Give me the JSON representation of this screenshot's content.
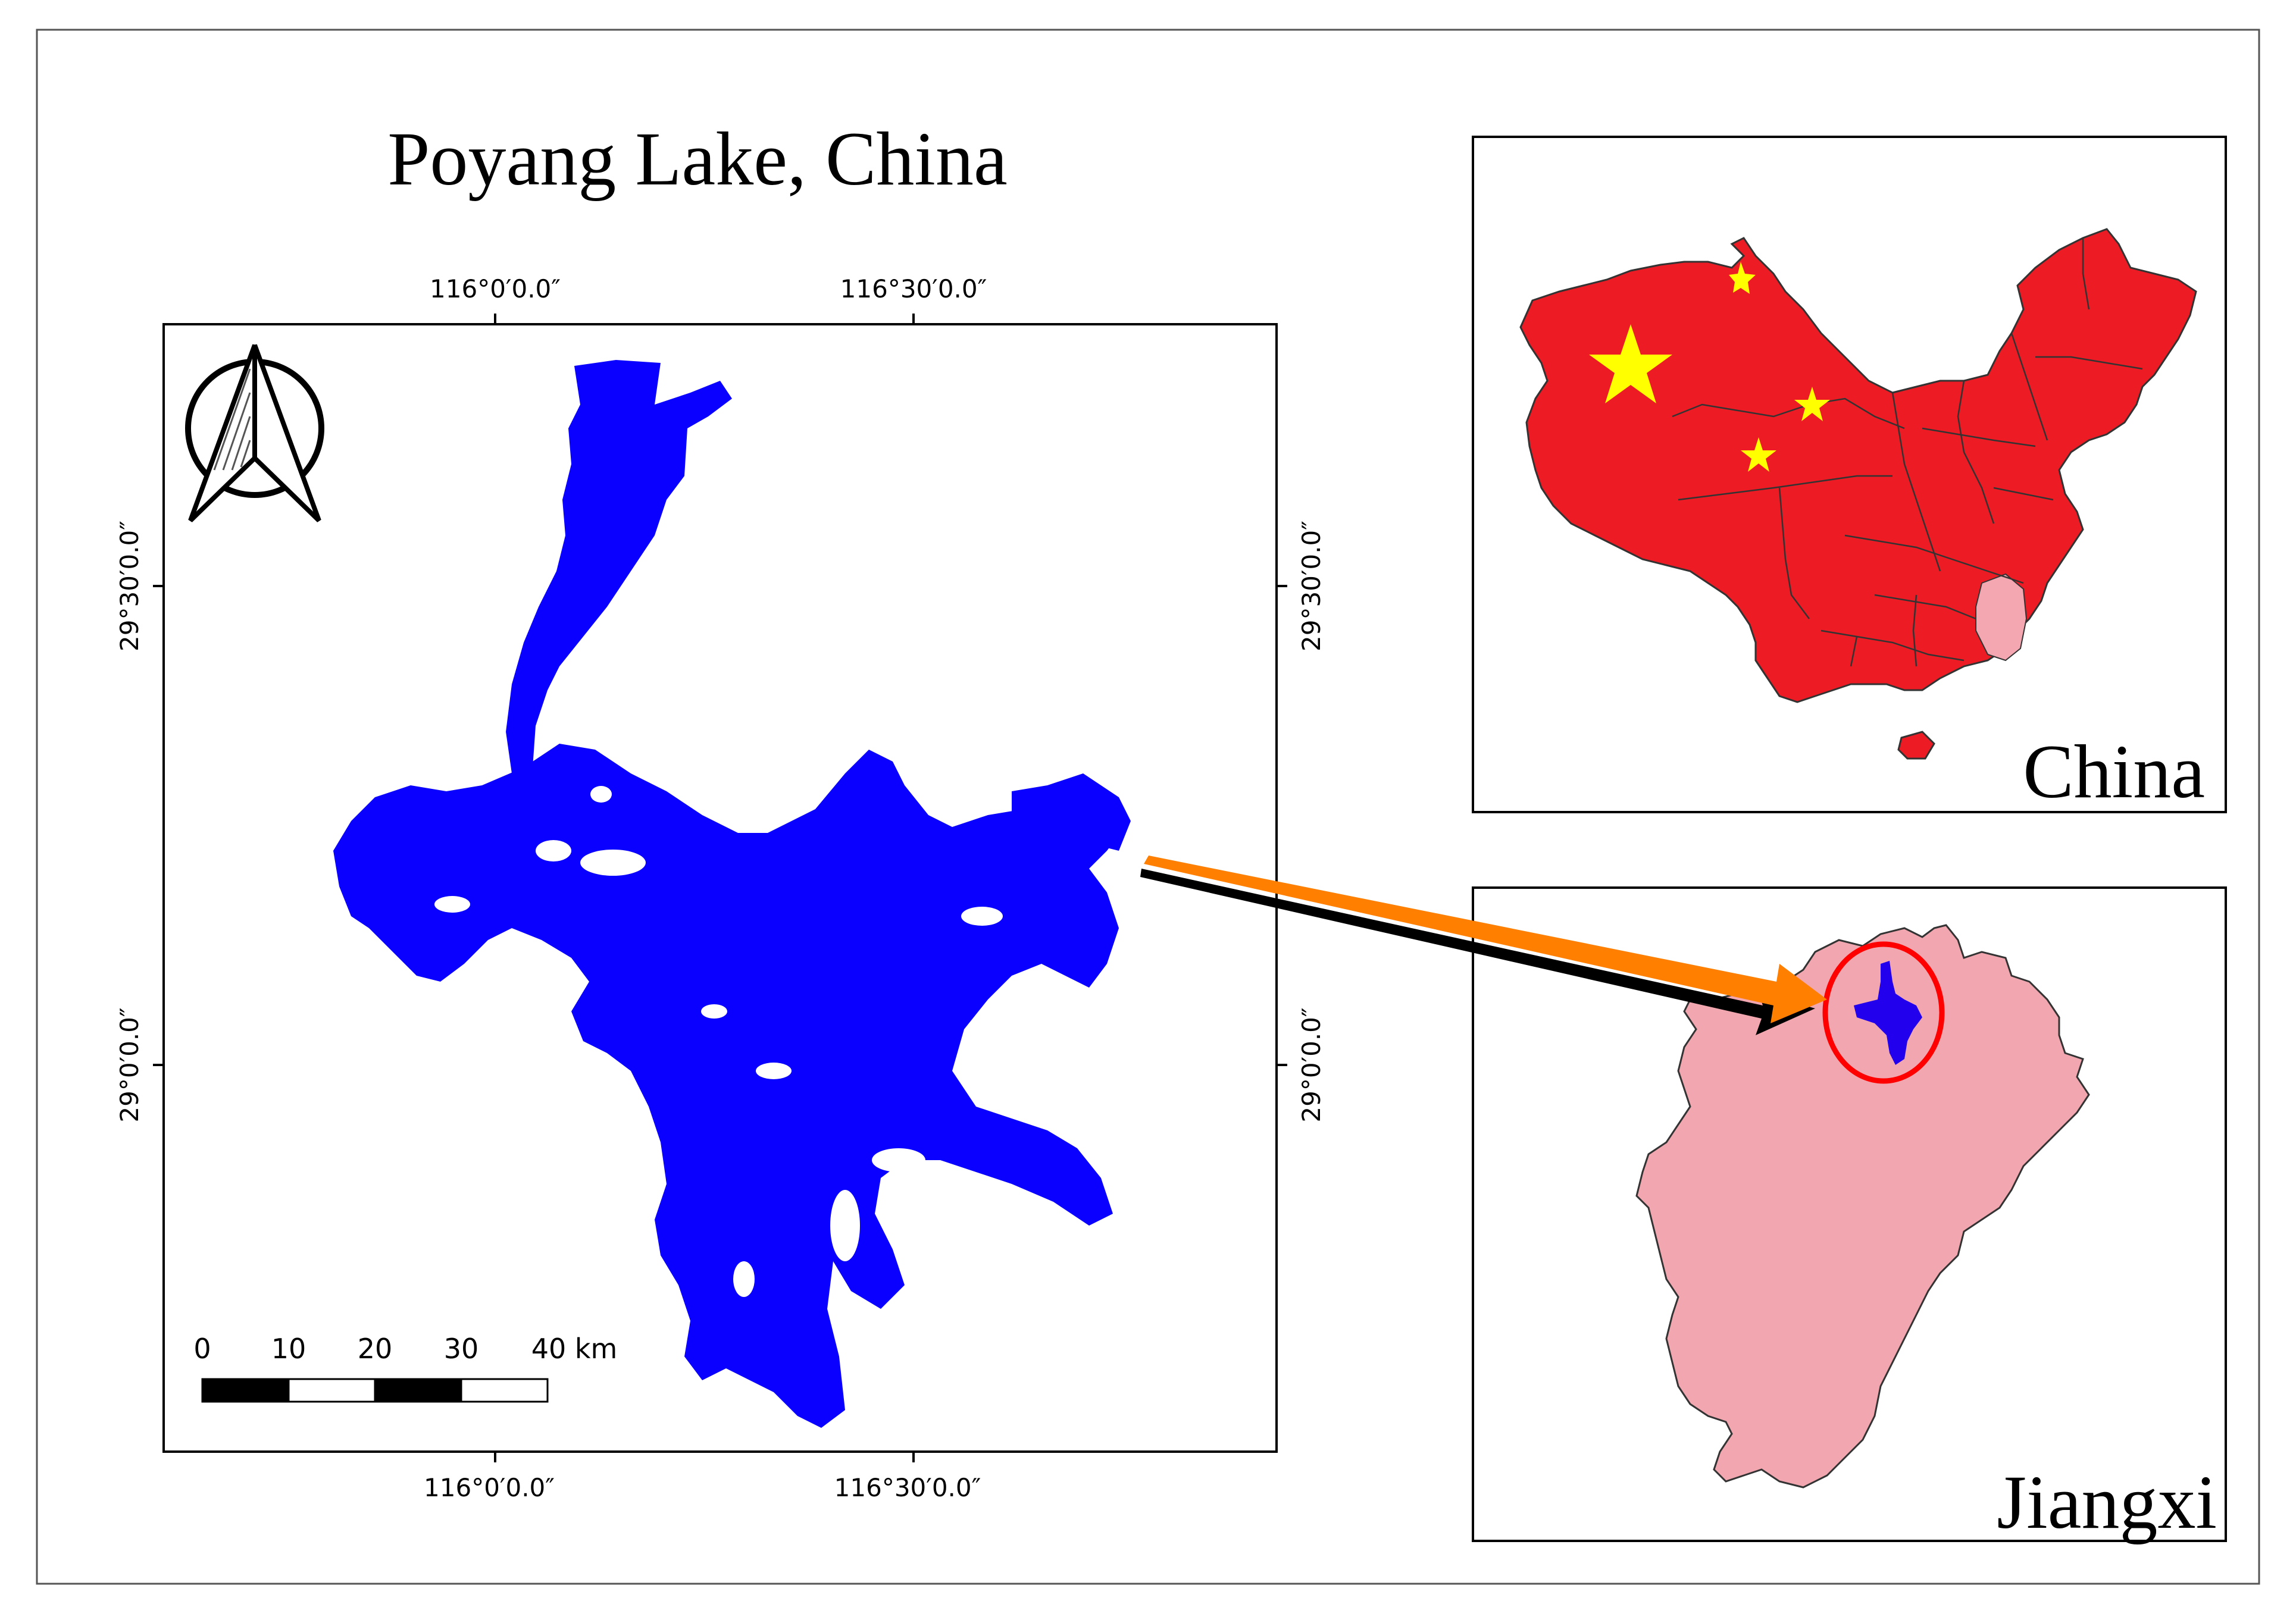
{
  "title": "Poyang Lake, China",
  "main_map": {
    "lon_top": [
      "116°0′0.0″",
      "116°30′0.0″"
    ],
    "lon_bottom": [
      "116°0′0.0″",
      "116°30′0.0″"
    ],
    "lat_left": [
      "29°30′0.0″",
      "29°0′0.0″"
    ],
    "lat_right": [
      "29°30′0.0″",
      "29°0′0.0″"
    ],
    "water_color": "#0a00ff"
  },
  "north_arrow": {
    "icon": "north-arrow-icon"
  },
  "scale_bar": {
    "ticks": [
      "0",
      "10",
      "20",
      "30",
      "40 km"
    ]
  },
  "inset_china": {
    "label": "China",
    "fill_color": "#ed1c24",
    "highlight_color": "#f4a6b1",
    "star_color": "#ffff00"
  },
  "inset_jiangxi": {
    "label": "Jiangxi",
    "fill_color": "#f2a7b0",
    "circle_color": "#ff0000"
  },
  "arrows": {
    "orange": "#ff7f00",
    "black": "#000000"
  }
}
